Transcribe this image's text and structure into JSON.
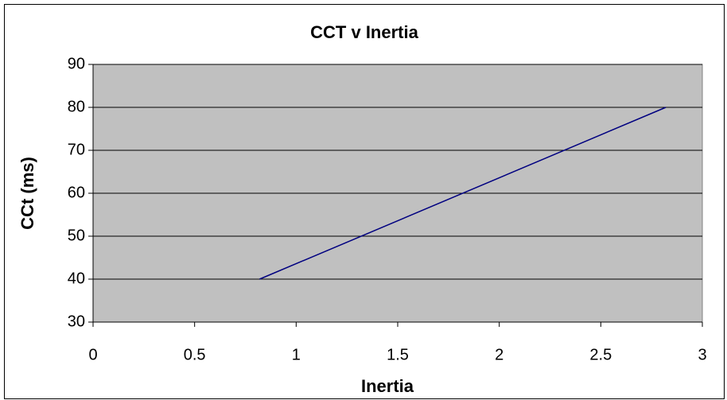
{
  "chart_data": {
    "type": "line",
    "title": "CCT v Inertia",
    "xlabel": "Inertia",
    "ylabel": "CCt (ms)",
    "x": [
      0.82,
      2.82
    ],
    "values": [
      40,
      80
    ],
    "color": "#000080",
    "xlim": [
      0,
      3
    ],
    "xticks": [
      0,
      0.5,
      1,
      1.5,
      2,
      2.5,
      3
    ],
    "ylim": [
      30,
      90
    ],
    "yticks": [
      30,
      40,
      50,
      60,
      70,
      80,
      90
    ],
    "grid": true
  }
}
